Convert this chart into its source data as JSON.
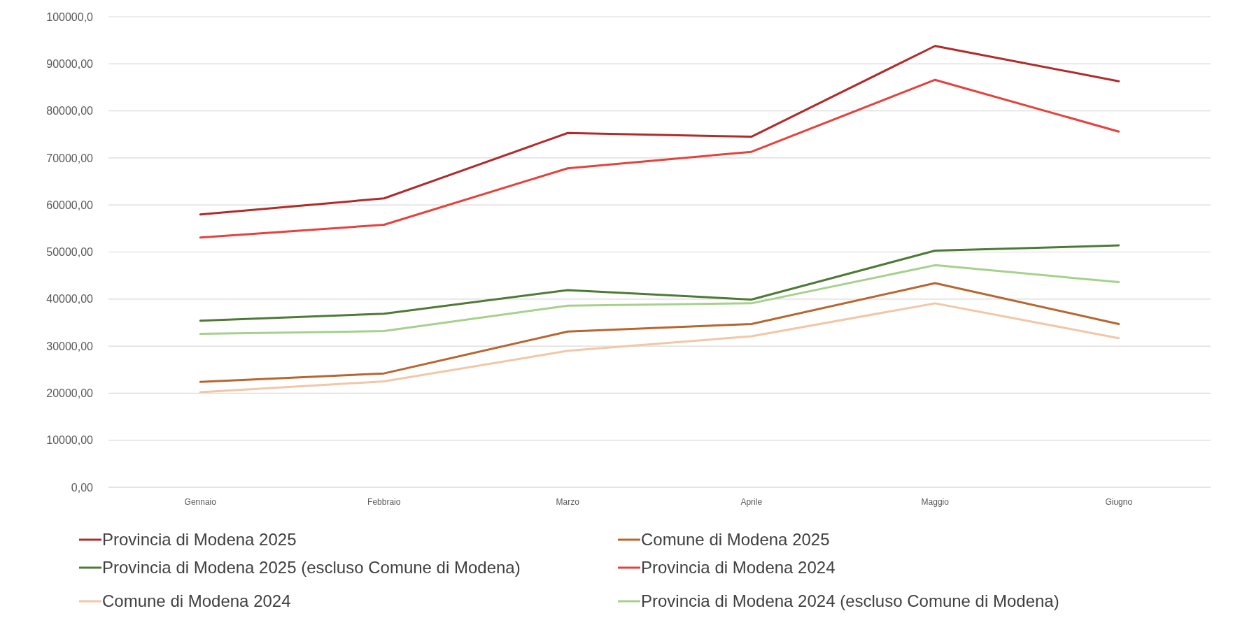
{
  "chart_data": {
    "type": "line",
    "categories": [
      "Gennaio",
      "Febbraio",
      "Marzo",
      "Aprile",
      "Maggio",
      "Giugno"
    ],
    "series": [
      {
        "name": "Provincia di Modena 2025",
        "color": "#b22a2a",
        "values": [
          58000,
          61400,
          75300,
          74500,
          93800,
          86300
        ]
      },
      {
        "name": "Comune di Modena 2025",
        "color": "#b8652e",
        "values": [
          22400,
          24200,
          33100,
          34700,
          43400,
          34700
        ]
      },
      {
        "name": "Provincia di Modena 2025 (escluso Comune di Modena)",
        "color": "#4e7a35",
        "values": [
          35400,
          36900,
          41900,
          39900,
          50300,
          51400
        ]
      },
      {
        "name": "Provincia di Modena 2024",
        "color": "#e8403a",
        "values": [
          53100,
          55800,
          67800,
          71300,
          86600,
          75600
        ]
      },
      {
        "name": "Comune di Modena 2024",
        "color": "#f2c6a6",
        "values": [
          20200,
          22500,
          29000,
          32100,
          39100,
          31700
        ]
      },
      {
        "name": "Provincia di Modena 2024 (escluso Comune di Modena)",
        "color": "#a5d18c",
        "values": [
          32600,
          33200,
          38600,
          39100,
          47200,
          43600
        ]
      }
    ],
    "ylim": [
      0,
      100000
    ],
    "yticks": [
      {
        "value": 0,
        "label": "0,00"
      },
      {
        "value": 10000,
        "label": "10000,00"
      },
      {
        "value": 20000,
        "label": "20000,00"
      },
      {
        "value": 30000,
        "label": "30000,00"
      },
      {
        "value": 40000,
        "label": "40000,00"
      },
      {
        "value": 50000,
        "label": "50000,00"
      },
      {
        "value": 60000,
        "label": "60000,00"
      },
      {
        "value": 70000,
        "label": "70000,00"
      },
      {
        "value": 80000,
        "label": "80000,00"
      },
      {
        "value": 90000,
        "label": "90000,00"
      },
      {
        "value": 100000,
        "label": "100000,0"
      }
    ],
    "grid": "y",
    "legend": "bottom",
    "marker": "none",
    "line_style": "solid"
  }
}
